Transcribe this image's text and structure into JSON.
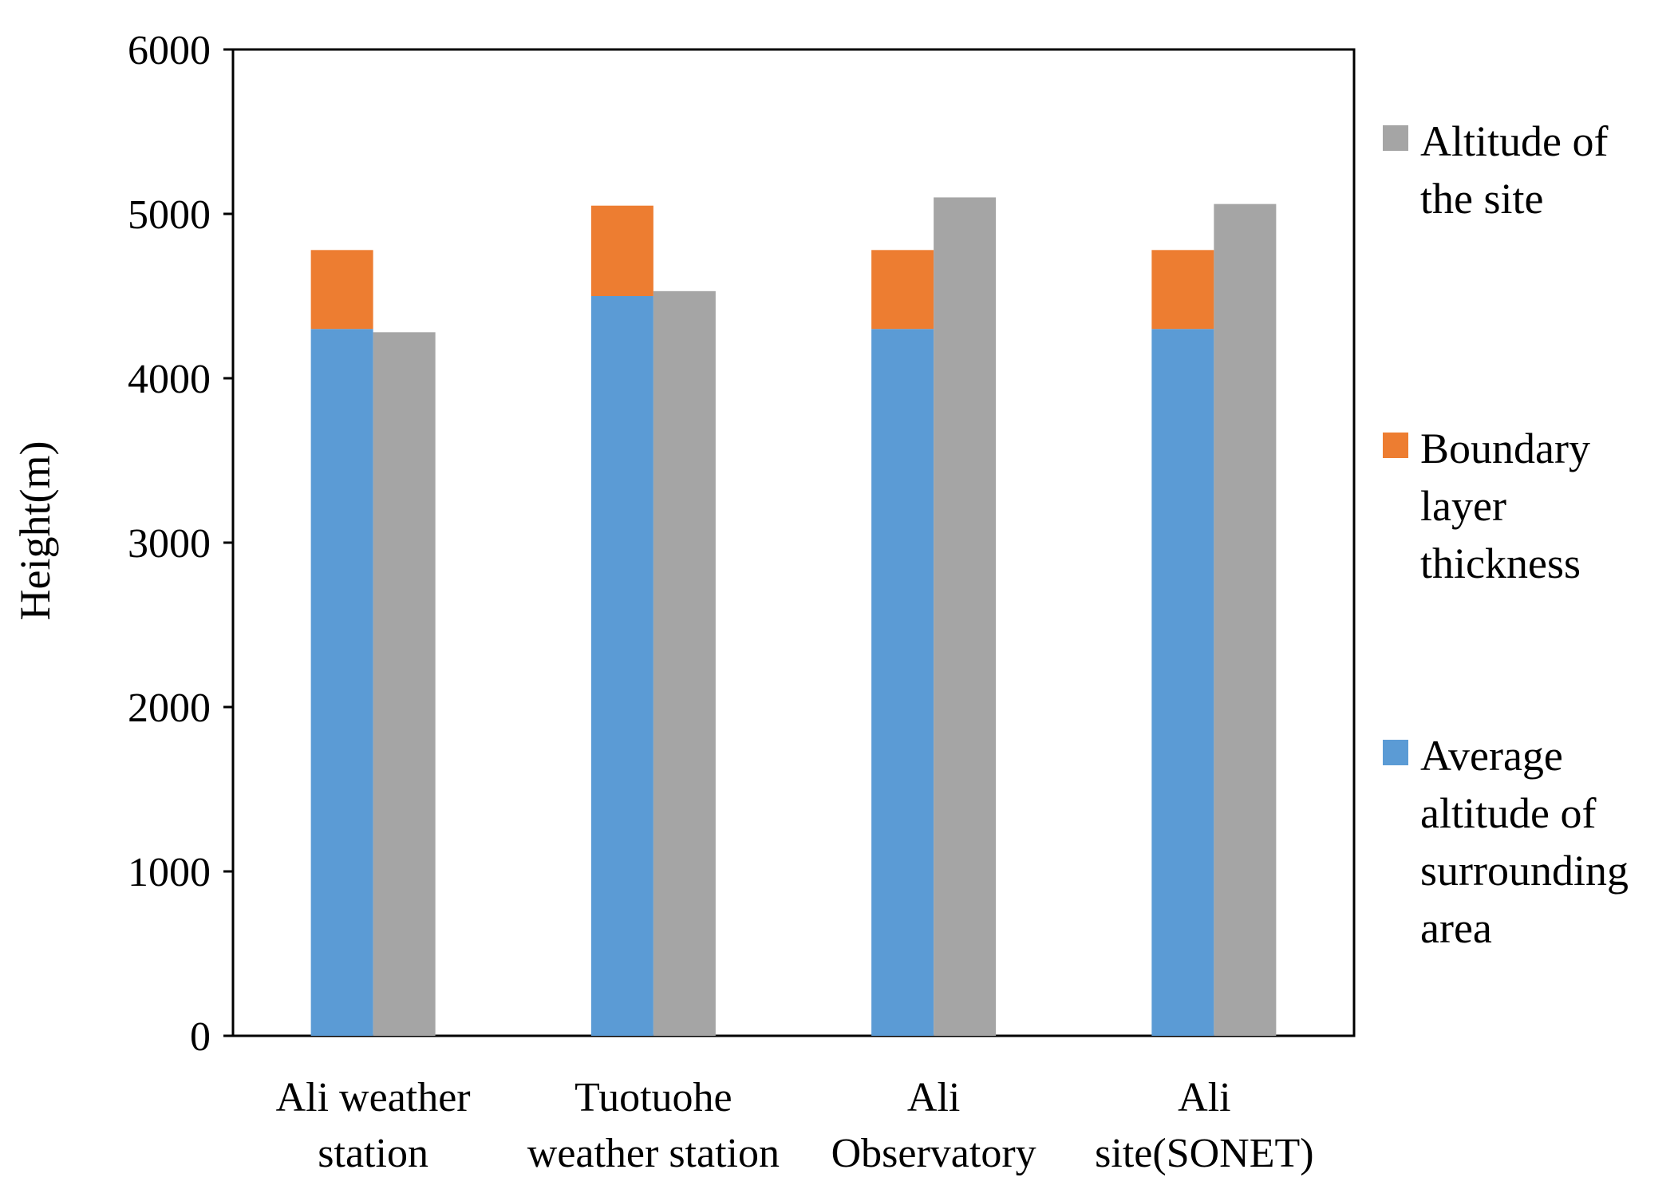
{
  "chart_data": {
    "type": "bar",
    "title": "",
    "xlabel": "",
    "ylabel": "Height(m)",
    "ylim": [
      0,
      6000
    ],
    "yticks": [
      "0",
      "1000",
      "2000",
      "3000",
      "4000",
      "5000",
      "6000"
    ],
    "grid": false,
    "legend_position": "right",
    "categories": [
      [
        "Ali weather",
        "station"
      ],
      [
        "Tuotuohe",
        "weather station"
      ],
      [
        "Ali",
        "Observatory"
      ],
      [
        "Ali",
        "site(SONET)"
      ]
    ],
    "stacked_series": [
      {
        "name": "Average altitude of surrounding area",
        "color": "#5b9bd5",
        "values": [
          4300,
          4500,
          4300,
          4300
        ]
      },
      {
        "name": "Boundary layer thickness",
        "color": "#ed7d31",
        "values": [
          480,
          550,
          480,
          480
        ]
      }
    ],
    "side_series": [
      {
        "name": "Altitude of the site",
        "color": "#a5a5a5",
        "values": [
          4280,
          4530,
          5100,
          5060
        ]
      }
    ],
    "legend": [
      {
        "series": "Altitude of the site",
        "color": "#a5a5a5",
        "lines": [
          "Altitude of",
          "the site"
        ]
      },
      {
        "series": "Boundary layer thickness",
        "color": "#ed7d31",
        "lines": [
          "Boundary",
          "layer",
          "thickness"
        ]
      },
      {
        "series": "Average altitude of surrounding area",
        "color": "#5b9bd5",
        "lines": [
          "Average",
          "altitude of",
          "surrounding",
          "area"
        ]
      }
    ]
  }
}
